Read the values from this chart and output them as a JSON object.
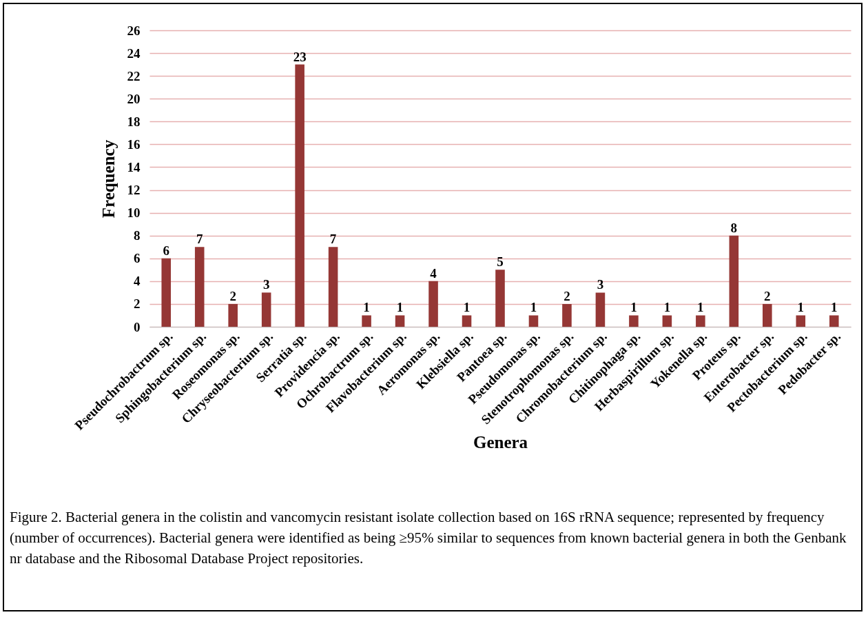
{
  "chart_data": {
    "type": "bar",
    "xlabel": "Genera",
    "ylabel": "Frequency",
    "categories": [
      "Pseudochrobactrum sp.",
      "Sphingobacterium sp.",
      "Roseomonas sp.",
      "Chryseobacterium sp.",
      "Serratia sp.",
      "Providencia sp.",
      "Ochrobactrum sp.",
      "Flavobacterium sp.",
      "Aeromonas sp.",
      "Klebsiella sp.",
      "Pantoea sp.",
      "Pseudomonas sp.",
      "Stenotrophomonas sp.",
      "Chromobacterium sp.",
      "Chitinophaga sp.",
      "Herbaspirillum sp.",
      "Yokenella sp.",
      "Proteus sp.",
      "Enterobacter sp.",
      "Pectobacterium sp.",
      "Pedobacter sp."
    ],
    "values": [
      6,
      7,
      2,
      3,
      23,
      7,
      1,
      1,
      4,
      1,
      5,
      1,
      2,
      3,
      1,
      1,
      1,
      8,
      2,
      1,
      1
    ],
    "color": "#953735",
    "data_labels": true,
    "grid": "y",
    "ylim": [
      0,
      26
    ],
    "yticks": [
      0,
      2,
      4,
      6,
      8,
      10,
      12,
      14,
      16,
      18,
      20,
      22,
      24,
      26
    ],
    "annotations": [
      "Figure 2. Bacterial genera in the colistin and vancomycin resistant isolate collection based on 16S rRNA sequence; represented by frequency (number of occurrences). Bacterial genera were identified as being ≥95% similar to sequences from known bacterial genera  in both the Genbank nr database and the Ribosomal Database Project repositories."
    ]
  }
}
